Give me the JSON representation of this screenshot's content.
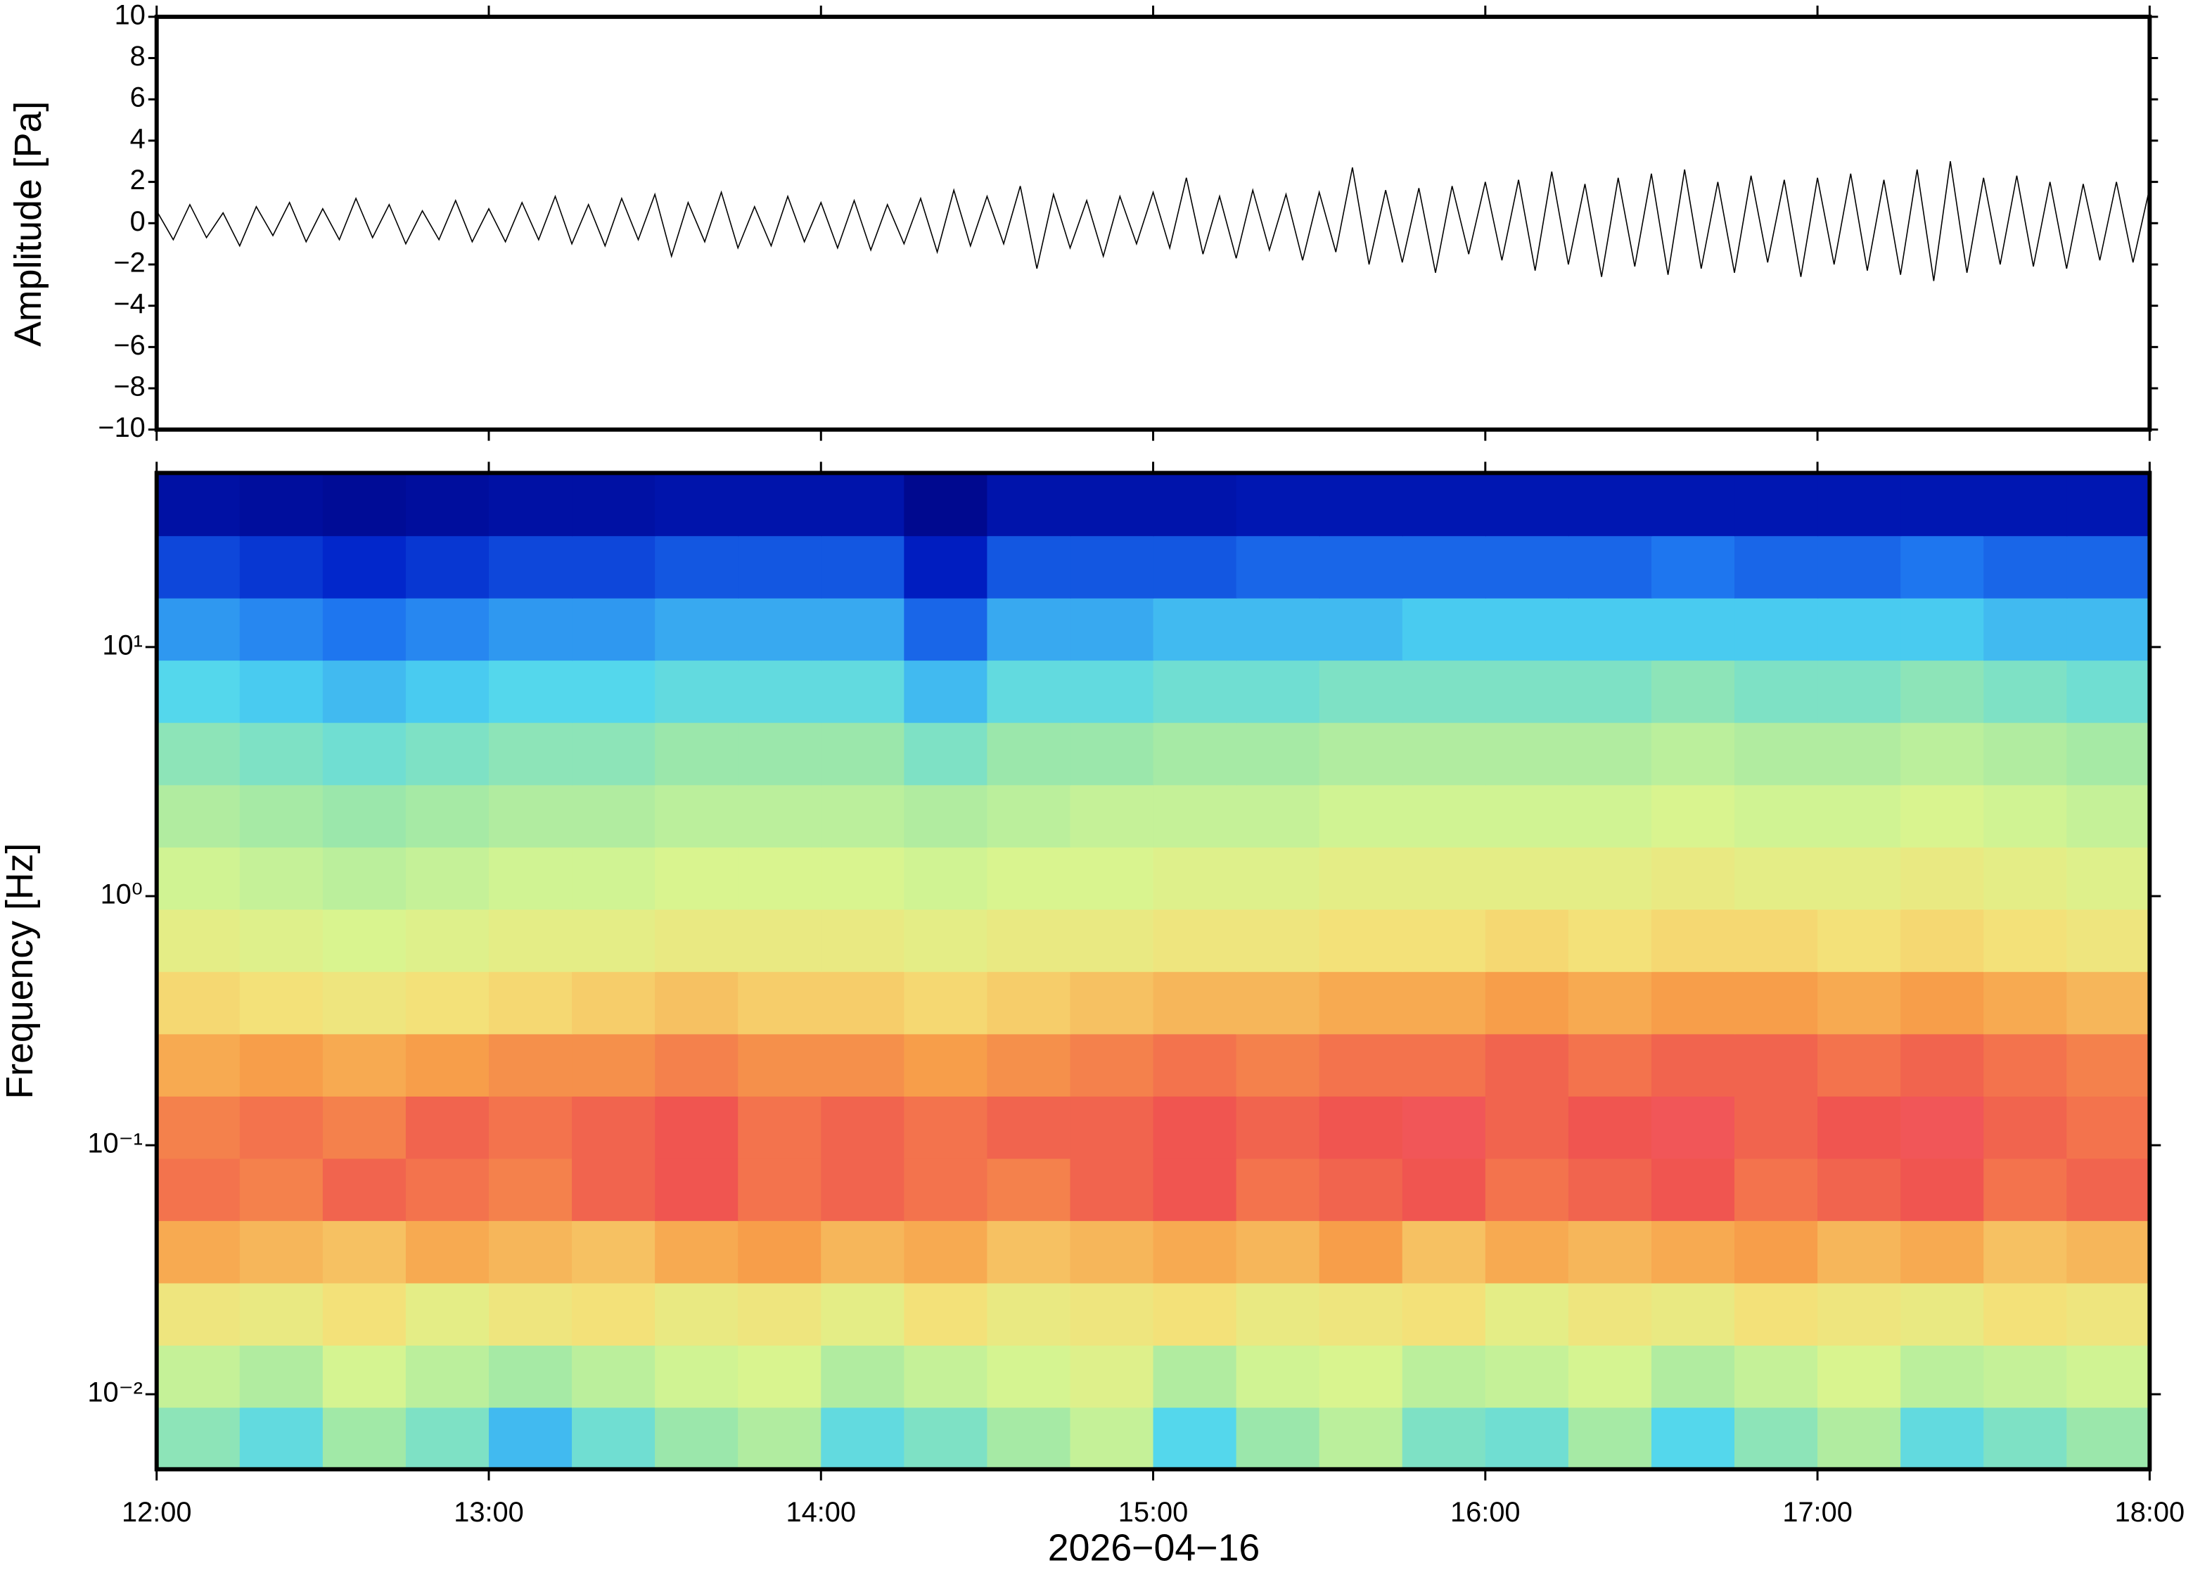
{
  "chart_data": [
    {
      "type": "line",
      "ylabel": "Amplitude [Pa]",
      "color": "#000000",
      "xlim": [
        12,
        18
      ],
      "ylim": [
        -10,
        10
      ],
      "yticks": [
        {
          "value": -10,
          "label": "−10"
        },
        {
          "value": -8,
          "label": "−8"
        },
        {
          "value": -6,
          "label": "−6"
        },
        {
          "value": -4,
          "label": "−4"
        },
        {
          "value": -2,
          "label": "−2"
        },
        0,
        2,
        4,
        6,
        8,
        10
      ],
      "x": [
        12,
        12.05,
        12.1,
        12.15,
        12.2,
        12.25,
        12.3,
        12.35,
        12.4,
        12.45,
        12.5,
        12.55,
        12.6,
        12.65,
        12.7,
        12.75,
        12.8,
        12.85,
        12.9,
        12.95,
        13,
        13.05,
        13.1,
        13.15,
        13.2,
        13.25,
        13.3,
        13.35,
        13.4,
        13.45,
        13.5,
        13.55,
        13.6,
        13.65,
        13.7,
        13.75,
        13.8,
        13.85,
        13.9,
        13.95,
        14,
        14.05,
        14.1,
        14.15,
        14.2,
        14.25,
        14.3,
        14.35,
        14.4,
        14.45,
        14.5,
        14.55,
        14.6,
        14.65,
        14.7,
        14.75,
        14.8,
        14.85,
        14.9,
        14.95,
        15,
        15.05,
        15.1,
        15.15,
        15.2,
        15.25,
        15.3,
        15.35,
        15.4,
        15.45,
        15.5,
        15.55,
        15.6,
        15.65,
        15.7,
        15.75,
        15.8,
        15.85,
        15.9,
        15.95,
        16,
        16.05,
        16.1,
        16.15,
        16.2,
        16.25,
        16.3,
        16.35,
        16.4,
        16.45,
        16.5,
        16.55,
        16.6,
        16.65,
        16.7,
        16.75,
        16.8,
        16.85,
        16.9,
        16.95,
        17,
        17.05,
        17.1,
        17.15,
        17.2,
        17.25,
        17.3,
        17.35,
        17.4,
        17.45,
        17.5,
        17.55,
        17.6,
        17.65,
        17.7,
        17.75,
        17.8,
        17.85,
        17.9,
        17.95,
        18
      ],
      "values": [
        0.6,
        -0.8,
        0.9,
        -0.7,
        0.5,
        -1.1,
        0.8,
        -0.6,
        1.0,
        -0.9,
        0.7,
        -0.8,
        1.2,
        -0.7,
        0.9,
        -1.0,
        0.6,
        -0.8,
        1.1,
        -0.9,
        0.7,
        -0.9,
        1.0,
        -0.8,
        1.3,
        -1.0,
        0.9,
        -1.1,
        1.2,
        -0.8,
        1.4,
        -1.6,
        1.0,
        -0.9,
        1.5,
        -1.2,
        0.8,
        -1.1,
        1.3,
        -0.9,
        1.0,
        -1.2,
        1.1,
        -1.3,
        0.9,
        -1.0,
        1.2,
        -1.4,
        1.6,
        -1.1,
        1.3,
        -1.0,
        1.8,
        -2.2,
        1.4,
        -1.2,
        1.1,
        -1.6,
        1.3,
        -1.0,
        1.5,
        -1.2,
        2.2,
        -1.5,
        1.3,
        -1.7,
        1.6,
        -1.3,
        1.4,
        -1.8,
        1.5,
        -1.4,
        2.7,
        -2.0,
        1.6,
        -1.9,
        1.7,
        -2.4,
        1.8,
        -1.5,
        2.0,
        -1.8,
        2.1,
        -2.3,
        2.5,
        -2.0,
        1.9,
        -2.6,
        2.2,
        -2.1,
        2.4,
        -2.5,
        2.6,
        -2.2,
        2.0,
        -2.4,
        2.3,
        -1.9,
        2.1,
        -2.6,
        2.2,
        -2.0,
        2.4,
        -2.3,
        2.1,
        -2.5,
        2.6,
        -2.8,
        3.0,
        -2.4,
        2.2,
        -2.0,
        2.3,
        -2.1,
        2.0,
        -2.2,
        1.9,
        -1.8,
        2.0,
        -1.9,
        1.7
      ]
    },
    {
      "type": "heatmap",
      "ylabel": "Frequency [Hz]",
      "xlabel": "2026−04−16",
      "log_y": true,
      "xlim": [
        12,
        18
      ],
      "xticks": [
        {
          "value": 12,
          "label": "12:00"
        },
        {
          "value": 13,
          "label": "13:00"
        },
        {
          "value": 14,
          "label": "14:00"
        },
        {
          "value": 15,
          "label": "15:00"
        },
        {
          "value": 16,
          "label": "16:00"
        },
        {
          "value": 17,
          "label": "17:00"
        },
        {
          "value": 18,
          "label": "18:00"
        }
      ],
      "ylim": [
        0.005,
        50
      ],
      "yticks": [
        {
          "value": 0.01,
          "label": "10⁻²"
        },
        {
          "value": 0.1,
          "label": "10⁻¹"
        },
        {
          "value": 1,
          "label": "10⁰"
        },
        {
          "value": 10,
          "label": "10¹"
        }
      ],
      "x_edges": [
        12,
        12.25,
        12.5,
        12.75,
        13,
        13.25,
        13.5,
        13.75,
        14,
        14.25,
        14.5,
        14.75,
        15,
        15.25,
        15.5,
        15.75,
        16,
        16.25,
        16.5,
        16.75,
        17,
        17.25,
        17.5,
        17.75,
        18
      ],
      "y_edges": [
        0.005,
        0.0089,
        0.0158,
        0.0281,
        0.05,
        0.0889,
        0.158,
        0.281,
        0.5,
        0.889,
        1.58,
        2.81,
        5,
        8.89,
        15.8,
        28.1,
        50
      ],
      "zlim": [
        0,
        100
      ],
      "colors": [
        "#00007a",
        "#0020c8",
        "#1f78f0",
        "#4fd6f0",
        "#9ee8a8",
        "#d8f590",
        "#f5e078",
        "#f7a04a",
        "#ef4f50",
        "#ff9aa0"
      ],
      "z": [
        [
          42,
          36,
          45,
          40,
          30,
          38,
          44,
          48,
          36,
          40,
          46,
          52,
          34,
          44,
          50,
          40,
          38,
          46,
          34,
          42,
          48,
          36,
          40,
          44
        ],
        [
          52,
          48,
          55,
          50,
          46,
          50,
          54,
          56,
          48,
          52,
          55,
          58,
          48,
          54,
          56,
          50,
          52,
          55,
          48,
          52,
          56,
          50,
          52,
          54
        ],
        [
          64,
          62,
          66,
          60,
          64,
          66,
          62,
          64,
          60,
          66,
          62,
          64,
          66,
          62,
          64,
          66,
          60,
          64,
          62,
          66,
          64,
          62,
          66,
          64
        ],
        [
          76,
          74,
          72,
          76,
          74,
          72,
          76,
          78,
          74,
          76,
          72,
          74,
          76,
          74,
          78,
          72,
          76,
          74,
          76,
          78,
          74,
          76,
          72,
          74
        ],
        [
          84,
          82,
          86,
          84,
          82,
          86,
          88,
          84,
          86,
          84,
          82,
          86,
          88,
          84,
          86,
          88,
          84,
          86,
          88,
          84,
          86,
          88,
          84,
          86
        ],
        [
          82,
          84,
          82,
          86,
          84,
          86,
          88,
          84,
          86,
          84,
          86,
          86,
          88,
          86,
          88,
          90,
          86,
          88,
          90,
          86,
          88,
          90,
          86,
          84
        ],
        [
          76,
          78,
          76,
          78,
          80,
          80,
          82,
          80,
          80,
          78,
          80,
          82,
          84,
          82,
          84,
          84,
          86,
          84,
          86,
          86,
          84,
          86,
          84,
          82
        ],
        [
          68,
          66,
          64,
          66,
          68,
          70,
          72,
          70,
          70,
          68,
          70,
          72,
          74,
          74,
          76,
          76,
          78,
          76,
          78,
          78,
          76,
          78,
          76,
          74
        ],
        [
          60,
          58,
          56,
          58,
          60,
          60,
          62,
          62,
          62,
          60,
          62,
          62,
          64,
          64,
          66,
          66,
          68,
          66,
          68,
          68,
          66,
          68,
          66,
          64
        ],
        [
          54,
          52,
          50,
          52,
          54,
          54,
          56,
          56,
          56,
          54,
          56,
          56,
          58,
          58,
          60,
          60,
          60,
          60,
          62,
          60,
          60,
          62,
          60,
          58
        ],
        [
          48,
          46,
          44,
          46,
          48,
          48,
          50,
          50,
          50,
          48,
          50,
          52,
          52,
          52,
          54,
          54,
          54,
          54,
          56,
          54,
          54,
          56,
          54,
          52
        ],
        [
          42,
          40,
          38,
          40,
          42,
          42,
          44,
          44,
          44,
          40,
          44,
          44,
          46,
          46,
          48,
          48,
          48,
          48,
          50,
          48,
          48,
          50,
          48,
          46
        ],
        [
          34,
          32,
          30,
          32,
          34,
          34,
          36,
          36,
          36,
          30,
          36,
          36,
          38,
          38,
          40,
          40,
          40,
          40,
          42,
          40,
          40,
          42,
          40,
          38
        ],
        [
          26,
          24,
          22,
          24,
          26,
          26,
          28,
          28,
          28,
          20,
          28,
          28,
          30,
          30,
          30,
          32,
          32,
          32,
          32,
          32,
          32,
          32,
          30,
          30
        ],
        [
          16,
          14,
          12,
          14,
          16,
          16,
          18,
          18,
          18,
          10,
          18,
          18,
          18,
          20,
          20,
          20,
          20,
          20,
          22,
          20,
          20,
          22,
          20,
          20
        ],
        [
          6,
          5,
          4,
          5,
          6,
          6,
          7,
          7,
          7,
          3,
          7,
          7,
          7,
          8,
          8,
          8,
          8,
          8,
          8,
          8,
          8,
          8,
          8,
          8
        ]
      ]
    }
  ]
}
